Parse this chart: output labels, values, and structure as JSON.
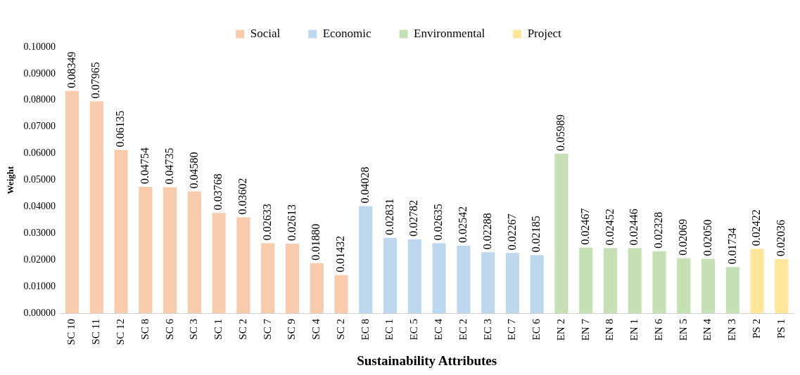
{
  "chart_data": {
    "type": "bar",
    "xlabel": "Sustainability Attributes",
    "ylabel": "Weight",
    "categories": [
      "SC 10",
      "SC 11",
      "SC 12",
      "SC 8",
      "SC 6",
      "SC 3",
      "SC 1",
      "SC 2",
      "SC 7",
      "SC 9",
      "SC 4",
      "SC 2",
      "EC 8",
      "EC 1",
      "EC 5",
      "EC 4",
      "EC 2",
      "EC 3",
      "EC 7",
      "EC 6",
      "EN 2",
      "EN 7",
      "EN 8",
      "EN 1",
      "EN 6",
      "EN 5",
      "EN 4",
      "EN 3",
      "PS 2",
      "PS 1"
    ],
    "series": [
      {
        "name": "Social",
        "color": "#f8cbad",
        "values": [
          0.08349,
          0.07965,
          0.06135,
          0.04754,
          0.04735,
          0.0458,
          0.03768,
          0.03602,
          0.02633,
          0.02613,
          0.0188,
          0.01432,
          null,
          null,
          null,
          null,
          null,
          null,
          null,
          null,
          null,
          null,
          null,
          null,
          null,
          null,
          null,
          null,
          null,
          null
        ],
        "value_labels": [
          "0.08349",
          "0.07965",
          "0.06135",
          "0.04754",
          "0.04735",
          "0.04580",
          "0.03768",
          "0.03602",
          "0.02633",
          "0.02613",
          "0.01880",
          "0.01432",
          null,
          null,
          null,
          null,
          null,
          null,
          null,
          null,
          null,
          null,
          null,
          null,
          null,
          null,
          null,
          null,
          null,
          null
        ]
      },
      {
        "name": "Economic",
        "color": "#bdd7ee",
        "values": [
          null,
          null,
          null,
          null,
          null,
          null,
          null,
          null,
          null,
          null,
          null,
          null,
          0.04028,
          0.02831,
          0.02782,
          0.02635,
          0.02542,
          0.02288,
          0.02267,
          0.02185,
          null,
          null,
          null,
          null,
          null,
          null,
          null,
          null,
          null,
          null
        ],
        "value_labels": [
          null,
          null,
          null,
          null,
          null,
          null,
          null,
          null,
          null,
          null,
          null,
          null,
          "0.04028",
          "0.02831",
          "0.02782",
          "0.02635",
          "0.02542",
          "0.02288",
          "0.02267",
          "0.02185",
          null,
          null,
          null,
          null,
          null,
          null,
          null,
          null,
          null,
          null
        ]
      },
      {
        "name": "Environmental",
        "color": "#c5e0b4",
        "values": [
          null,
          null,
          null,
          null,
          null,
          null,
          null,
          null,
          null,
          null,
          null,
          null,
          null,
          null,
          null,
          null,
          null,
          null,
          null,
          null,
          0.05989,
          0.02467,
          0.02452,
          0.02446,
          0.02328,
          0.02069,
          0.0205,
          0.01734,
          null,
          null
        ],
        "value_labels": [
          null,
          null,
          null,
          null,
          null,
          null,
          null,
          null,
          null,
          null,
          null,
          null,
          null,
          null,
          null,
          null,
          null,
          null,
          null,
          null,
          "0.05989",
          "0.02467",
          "0.02452",
          "0.02446",
          "0.02328",
          "0.02069",
          "0.02050",
          "0.01734",
          null,
          null
        ]
      },
      {
        "name": "Project",
        "color": "#ffe699",
        "values": [
          null,
          null,
          null,
          null,
          null,
          null,
          null,
          null,
          null,
          null,
          null,
          null,
          null,
          null,
          null,
          null,
          null,
          null,
          null,
          null,
          null,
          null,
          null,
          null,
          null,
          null,
          null,
          null,
          0.02422,
          0.02036
        ],
        "value_labels": [
          null,
          null,
          null,
          null,
          null,
          null,
          null,
          null,
          null,
          null,
          null,
          null,
          null,
          null,
          null,
          null,
          null,
          null,
          null,
          null,
          null,
          null,
          null,
          null,
          null,
          null,
          null,
          null,
          "0.02422",
          "0.02036"
        ]
      }
    ],
    "ylim": [
      0,
      0.1
    ],
    "yticks": [
      {
        "value": 0,
        "label": "0.00000"
      },
      {
        "value": 0.01,
        "label": "0.01000"
      },
      {
        "value": 0.02,
        "label": "0.02000"
      },
      {
        "value": 0.03,
        "label": "0.03000"
      },
      {
        "value": 0.04,
        "label": "0.04000"
      },
      {
        "value": 0.05,
        "label": "0.05000"
      },
      {
        "value": 0.06,
        "label": "0.06000"
      },
      {
        "value": 0.07,
        "label": "0.07000"
      },
      {
        "value": 0.08,
        "label": "0.08000"
      },
      {
        "value": 0.09,
        "label": "0.09000"
      },
      {
        "value": 0.1,
        "label": "0.10000"
      }
    ],
    "grid": false,
    "legend": "top"
  }
}
